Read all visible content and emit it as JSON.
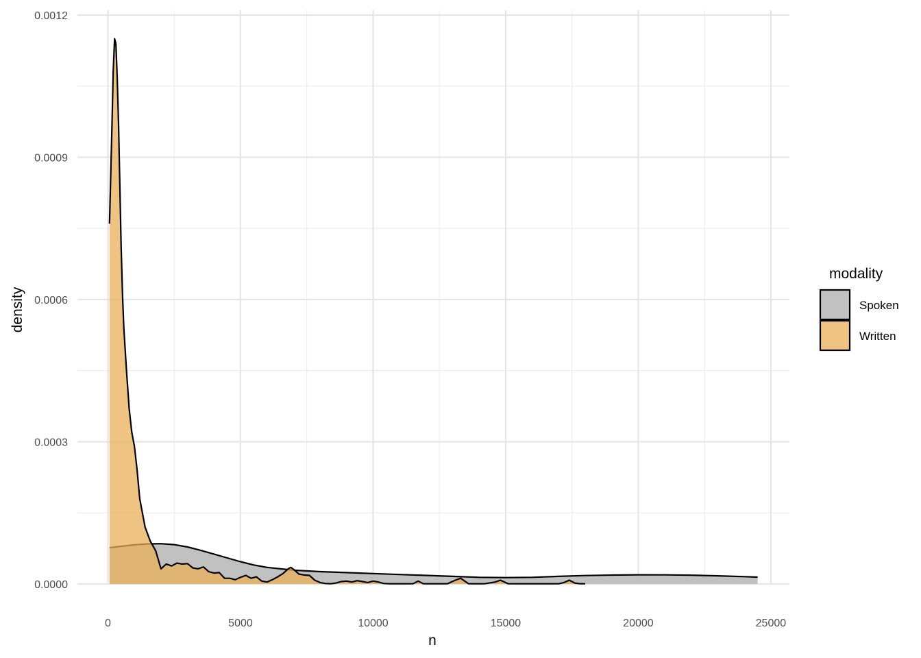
{
  "chart_data": {
    "type": "area",
    "title": "",
    "xlabel": "n",
    "ylabel": "density",
    "xlim": [
      -1150,
      25700
    ],
    "ylim": [
      0,
      0.00121
    ],
    "x_ticks": [
      0,
      5000,
      10000,
      15000,
      20000,
      25000
    ],
    "x_tick_labels": [
      "0",
      "5000",
      "10000",
      "15000",
      "20000",
      "25000"
    ],
    "y_ticks": [
      0,
      0.0003,
      0.0006,
      0.0009,
      0.0012
    ],
    "y_tick_labels": [
      "0.0000",
      "0.0003",
      "0.0006",
      "0.0009",
      "0.0012"
    ],
    "grid": true,
    "legend": {
      "title": "modality",
      "position": "right"
    },
    "series": [
      {
        "name": "Spoken",
        "color": "#bebebe",
        "opacity": 0.95,
        "x": [
          60,
          500,
          1000,
          1500,
          2000,
          2500,
          3000,
          3500,
          4000,
          4500,
          5000,
          5500,
          6000,
          7000,
          8000,
          9000,
          10000,
          11000,
          12000,
          13000,
          14000,
          15000,
          16000,
          17000,
          18000,
          19000,
          20000,
          21000,
          22000,
          23000,
          24000,
          24500
        ],
        "y": [
          7.65e-05,
          7.95e-05,
          8.25e-05,
          8.45e-05,
          8.5e-05,
          8.3e-05,
          7.8e-05,
          7.1e-05,
          6.3e-05,
          5.5e-05,
          4.7e-05,
          4e-05,
          3.5e-05,
          2.9e-05,
          2.6e-05,
          2.4e-05,
          2.2e-05,
          2e-05,
          1.8e-05,
          1.6e-05,
          1.4e-05,
          1.35e-05,
          1.4e-05,
          1.6e-05,
          1.78e-05,
          1.88e-05,
          1.93e-05,
          1.92e-05,
          1.85e-05,
          1.72e-05,
          1.55e-05,
          1.45e-05
        ]
      },
      {
        "name": "Written",
        "color": "#e9b05a",
        "opacity": 0.75,
        "x": [
          60,
          150,
          200,
          250,
          300,
          350,
          400,
          450,
          500,
          550,
          600,
          700,
          800,
          900,
          1000,
          1100,
          1200,
          1400,
          1600,
          1800,
          2000,
          2200,
          2400,
          2600,
          2800,
          3000,
          3200,
          3400,
          3600,
          3800,
          4000,
          4200,
          4400,
          4600,
          4800,
          5000,
          5200,
          5400,
          5600,
          5800,
          6000,
          6200,
          6400,
          6600,
          6800,
          6900,
          7000,
          7200,
          7400,
          7600,
          7800,
          8000,
          8200,
          8400,
          8600,
          8800,
          9000,
          9200,
          9400,
          9600,
          9800,
          10000,
          10200,
          10400,
          10600,
          11000,
          11500,
          11700,
          11900,
          12200,
          12800,
          13100,
          13300,
          13600,
          14200,
          14600,
          14800,
          15100,
          16000,
          17000,
          17200,
          17400,
          17600,
          17800,
          18000
        ],
        "y": [
          0.00076,
          0.00096,
          0.00108,
          0.00115,
          0.00114,
          0.00107,
          0.00097,
          0.00084,
          0.00071,
          0.00061,
          0.00054,
          0.00045,
          0.00037,
          0.00032,
          0.00029,
          0.00024,
          0.00018,
          0.00012,
          9e-05,
          7e-05,
          3.2e-05,
          4.2e-05,
          3.8e-05,
          4.4e-05,
          4.2e-05,
          4.3e-05,
          3.4e-05,
          3.2e-05,
          3.6e-05,
          2.6e-05,
          2.3e-05,
          2.4e-05,
          1.2e-05,
          1.2e-05,
          9e-06,
          1.4e-05,
          1.8e-05,
          1.2e-05,
          1.5e-05,
          6e-06,
          4e-06,
          9e-06,
          1.5e-05,
          2.2e-05,
          3.2e-05,
          3.5e-05,
          3.1e-05,
          2.1e-05,
          1.9e-05,
          1.8e-05,
          8e-06,
          3e-06,
          1e-06,
          5e-07,
          2e-06,
          5e-06,
          6e-06,
          4e-06,
          7e-06,
          5e-06,
          3e-06,
          6e-06,
          4e-06,
          1e-06,
          5e-07,
          5e-07,
          5e-07,
          6e-06,
          5e-07,
          5e-07,
          5e-07,
          8e-06,
          1.2e-05,
          5e-07,
          5e-07,
          4e-06,
          8e-06,
          5e-07,
          5e-07,
          5e-07,
          3e-06,
          8e-06,
          2e-06,
          5e-07,
          5e-07
        ]
      }
    ]
  }
}
